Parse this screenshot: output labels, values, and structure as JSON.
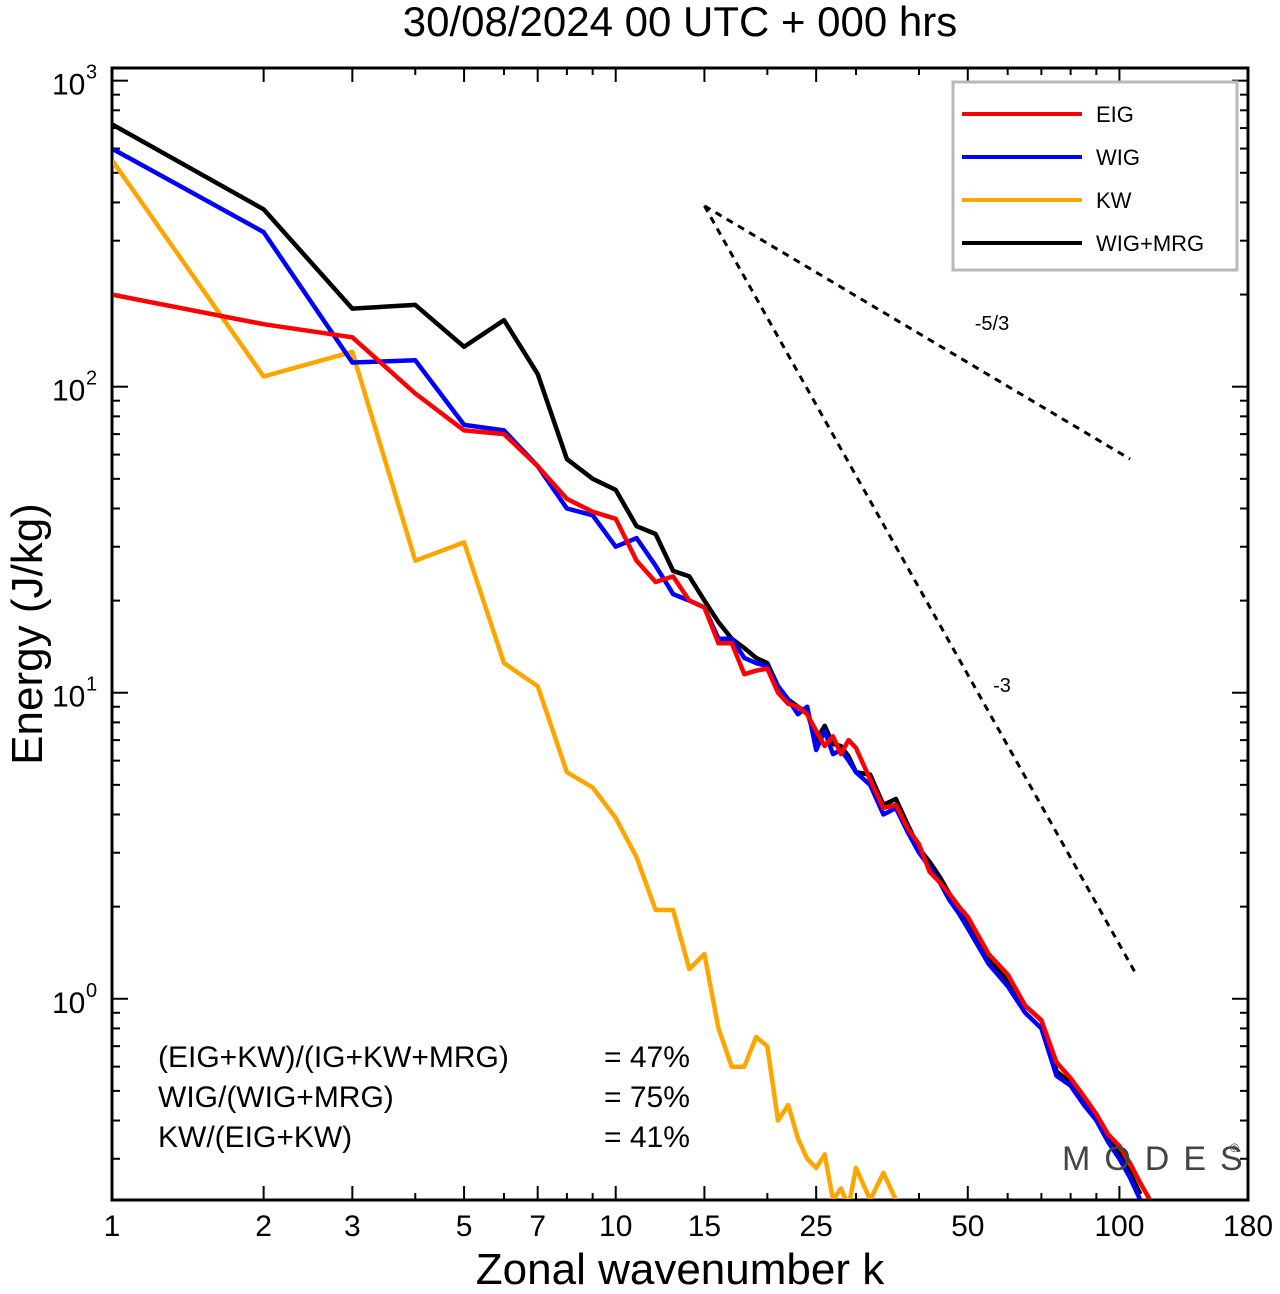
{
  "chart_data": {
    "type": "line",
    "title": "30/08/2024  00 UTC  + 000 hrs",
    "xlabel": "Zonal wavenumber k",
    "ylabel": "Energy (J/kg)",
    "xscale": "log",
    "yscale": "log",
    "xlim": [
      1,
      180
    ],
    "ylim": [
      0.22,
      1100
    ],
    "grid": false,
    "legend_position": "top-right",
    "x_ticks": [
      "1",
      "2",
      "3",
      "5",
      "7",
      "10",
      "15",
      "25",
      "50",
      "100",
      "180"
    ],
    "y_ticks": [
      {
        "base": "10",
        "exp": "0"
      },
      {
        "base": "10",
        "exp": "1"
      },
      {
        "base": "10",
        "exp": "2"
      },
      {
        "base": "10",
        "exp": "3"
      }
    ],
    "series": [
      {
        "name": "EIG",
        "color": "#ff0000",
        "x": [
          1,
          2,
          3,
          4,
          5,
          6,
          7,
          8,
          9,
          10,
          11,
          12,
          13,
          14,
          15,
          16,
          17,
          18,
          19,
          20,
          21,
          22,
          23,
          24,
          25,
          26,
          27,
          28,
          29,
          30,
          32,
          34,
          36,
          38,
          40,
          42,
          44,
          46,
          48,
          50,
          55,
          60,
          65,
          70,
          75,
          80,
          85,
          90,
          95,
          100,
          105,
          110,
          115
        ],
        "y": [
          200,
          160,
          145,
          95,
          72,
          70,
          55,
          43,
          39,
          37,
          27,
          23,
          24,
          20,
          19,
          14.5,
          14.5,
          11.5,
          11.8,
          12,
          10,
          9.2,
          9.0,
          8.5,
          7.5,
          6.7,
          7.2,
          6.3,
          7.0,
          6.6,
          5.2,
          4.2,
          4.3,
          3.6,
          3.2,
          2.6,
          2.4,
          2.2,
          2.0,
          1.85,
          1.4,
          1.2,
          0.95,
          0.85,
          0.62,
          0.55,
          0.48,
          0.42,
          0.36,
          0.33,
          0.29,
          0.25,
          0.22
        ]
      },
      {
        "name": "WIG",
        "color": "#0000ff",
        "x": [
          1,
          2,
          3,
          4,
          5,
          6,
          7,
          8,
          9,
          10,
          11,
          12,
          13,
          14,
          15,
          16,
          17,
          18,
          19,
          20,
          21,
          22,
          23,
          24,
          25,
          26,
          27,
          28,
          29,
          30,
          32,
          34,
          36,
          38,
          40,
          42,
          44,
          46,
          48,
          50,
          55,
          60,
          65,
          70,
          75,
          80,
          85,
          90,
          95,
          100,
          105,
          110
        ],
        "y": [
          600,
          320,
          120,
          122,
          75,
          72,
          55,
          40,
          38,
          30,
          32,
          26,
          21,
          20,
          19,
          15,
          15,
          13,
          12.5,
          12.2,
          10.5,
          9.5,
          8.5,
          9.0,
          6.5,
          7.5,
          6.3,
          6.5,
          6.0,
          5.5,
          5.0,
          4.0,
          4.2,
          3.5,
          3.0,
          2.7,
          2.4,
          2.1,
          1.9,
          1.7,
          1.3,
          1.1,
          0.9,
          0.8,
          0.56,
          0.52,
          0.45,
          0.4,
          0.34,
          0.3,
          0.26,
          0.22
        ]
      },
      {
        "name": "KW",
        "color": "#ffa500",
        "x": [
          1,
          2,
          3,
          4,
          5,
          6,
          7,
          8,
          9,
          10,
          11,
          12,
          13,
          14,
          15,
          16,
          17,
          18,
          19,
          20,
          21,
          22,
          23,
          24,
          25,
          26,
          27,
          28,
          29,
          30,
          32,
          34,
          36
        ],
        "y": [
          550,
          108,
          130,
          27,
          31,
          12.5,
          10.5,
          5.5,
          4.9,
          3.9,
          2.9,
          1.95,
          1.95,
          1.25,
          1.4,
          0.8,
          0.6,
          0.6,
          0.75,
          0.7,
          0.4,
          0.45,
          0.35,
          0.3,
          0.28,
          0.31,
          0.22,
          0.24,
          0.21,
          0.28,
          0.22,
          0.27,
          0.22
        ]
      },
      {
        "name": "WIG+MRG",
        "color": "#000000",
        "x": [
          1,
          2,
          3,
          4,
          5,
          6,
          7,
          8,
          9,
          10,
          11,
          12,
          13,
          14,
          15,
          16,
          17,
          18,
          19,
          20,
          21,
          22,
          23,
          24,
          25,
          26,
          27,
          28,
          29,
          30,
          32,
          34,
          36,
          38,
          40,
          42,
          44,
          46,
          48,
          50,
          55,
          60,
          65,
          70,
          75,
          80,
          85,
          90,
          95,
          100,
          105,
          110
        ],
        "y": [
          720,
          380,
          180,
          185,
          135,
          165,
          110,
          58,
          50,
          46,
          35,
          33,
          25,
          24,
          20,
          17,
          15,
          14,
          13,
          12.5,
          10.5,
          9.5,
          9.0,
          8.6,
          7.0,
          7.8,
          6.8,
          6.7,
          6.2,
          5.5,
          5.4,
          4.3,
          4.5,
          3.7,
          3.1,
          2.8,
          2.5,
          2.2,
          2.0,
          1.8,
          1.35,
          1.15,
          0.95,
          0.85,
          0.58,
          0.53,
          0.46,
          0.41,
          0.35,
          0.31,
          0.27,
          0.23
        ]
      }
    ],
    "reference_lines": [
      {
        "label": "-5/3",
        "x": [
          15,
          105
        ],
        "y": [
          390,
          58
        ]
      },
      {
        "label": "-3",
        "x": [
          15,
          108
        ],
        "y": [
          390,
          1.2
        ]
      }
    ],
    "annotations": [
      {
        "name": "(EIG+KW)/(IG+KW+MRG)",
        "value": "= 47%"
      },
      {
        "name": "WIG/(WIG+MRG)",
        "value": "= 75%"
      },
      {
        "name": "KW/(EIG+KW)",
        "value": "= 41%"
      }
    ],
    "watermark": "MODES"
  }
}
